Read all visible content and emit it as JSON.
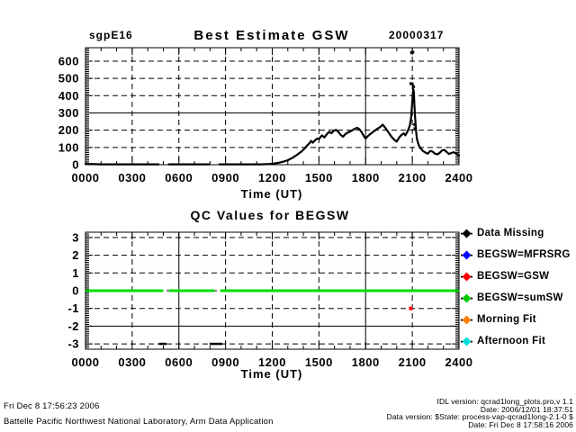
{
  "page": {
    "background": "#ffffff"
  },
  "chart_data": [
    {
      "type": "line",
      "site": "sgpE16",
      "title": "Best Estimate GSW",
      "date": "20000317",
      "xlabel": "Time (UT)",
      "ylabel": "",
      "x_ticks": [
        "0000",
        "0300",
        "0600",
        "0900",
        "1200",
        "1500",
        "1800",
        "2100",
        "2400"
      ],
      "x_tick_hours": [
        0,
        3,
        6,
        9,
        12,
        15,
        18,
        21,
        24
      ],
      "y_ticks": [
        600,
        500,
        400,
        300,
        200,
        100,
        0
      ],
      "grid_h": [
        600,
        500,
        400,
        300,
        200,
        100
      ],
      "y_minor_step": 10,
      "xlim": [
        0,
        24
      ],
      "ylim": [
        0,
        678
      ],
      "grid": {
        "style": "dashed",
        "solid_h": [
          300
        ],
        "solid_v": [
          18
        ]
      },
      "line_color": "#000000",
      "series": [
        [
          0.0,
          7
        ],
        [
          0.1,
          5
        ],
        [
          0.3,
          4
        ],
        [
          0.6,
          3
        ],
        [
          1.0,
          2
        ],
        [
          2.0,
          2
        ],
        [
          3.0,
          2
        ],
        [
          4.0,
          2
        ],
        [
          4.7,
          2
        ],
        null,
        [
          5.35,
          2
        ],
        [
          6.0,
          2
        ],
        [
          7.0,
          2
        ],
        [
          7.95,
          2
        ],
        null,
        [
          8.6,
          2
        ],
        [
          9.5,
          2
        ],
        [
          10.5,
          2
        ],
        [
          11.3,
          2
        ],
        [
          11.8,
          4
        ],
        [
          12.1,
          7
        ],
        [
          12.4,
          11
        ],
        [
          12.7,
          17
        ],
        [
          13.0,
          26
        ],
        [
          13.3,
          40
        ],
        [
          13.6,
          58
        ],
        [
          13.9,
          78
        ],
        [
          14.1,
          96
        ],
        [
          14.25,
          112
        ],
        [
          14.4,
          125
        ],
        [
          14.5,
          138
        ],
        [
          14.6,
          128
        ],
        [
          14.75,
          142
        ],
        [
          14.9,
          152
        ],
        [
          15.0,
          148
        ],
        [
          15.1,
          160
        ],
        [
          15.2,
          170
        ],
        [
          15.35,
          158
        ],
        [
          15.5,
          176
        ],
        [
          15.65,
          190
        ],
        [
          15.8,
          182
        ],
        [
          15.95,
          196
        ],
        [
          16.1,
          202
        ],
        [
          16.25,
          190
        ],
        [
          16.4,
          172
        ],
        [
          16.55,
          162
        ],
        [
          16.7,
          178
        ],
        [
          16.85,
          186
        ],
        [
          17.0,
          192
        ],
        [
          17.15,
          200
        ],
        [
          17.3,
          208
        ],
        [
          17.45,
          214
        ],
        [
          17.6,
          206
        ],
        [
          17.75,
          188
        ],
        [
          17.9,
          164
        ],
        [
          18.0,
          152
        ],
        [
          18.15,
          166
        ],
        [
          18.3,
          178
        ],
        [
          18.45,
          188
        ],
        [
          18.6,
          198
        ],
        [
          18.75,
          208
        ],
        [
          18.9,
          216
        ],
        [
          19.0,
          224
        ],
        [
          19.1,
          232
        ],
        [
          19.25,
          215
        ],
        [
          19.4,
          196
        ],
        [
          19.55,
          176
        ],
        [
          19.7,
          158
        ],
        [
          19.85,
          144
        ],
        [
          20.0,
          134
        ],
        [
          20.15,
          156
        ],
        [
          20.3,
          172
        ],
        [
          20.45,
          182
        ],
        [
          20.55,
          170
        ],
        [
          20.65,
          186
        ],
        [
          20.75,
          204
        ],
        [
          20.85,
          230
        ],
        [
          20.92,
          268
        ],
        [
          20.97,
          330
        ],
        [
          21.02,
          395
        ],
        [
          21.06,
          438
        ],
        [
          21.1,
          418
        ],
        [
          21.13,
          350
        ],
        [
          21.17,
          282
        ],
        [
          21.2,
          248
        ],
        [
          21.25,
          190
        ],
        [
          21.3,
          148
        ],
        [
          21.4,
          118
        ],
        [
          21.5,
          98
        ],
        [
          21.6,
          88
        ],
        [
          21.7,
          78
        ],
        [
          21.85,
          70
        ],
        [
          22.0,
          64
        ],
        [
          22.15,
          80
        ],
        [
          22.3,
          76
        ],
        [
          22.45,
          64
        ],
        [
          22.6,
          60
        ],
        [
          22.75,
          68
        ],
        [
          22.9,
          82
        ],
        [
          23.05,
          86
        ],
        [
          23.2,
          74
        ],
        [
          23.35,
          62
        ],
        [
          23.5,
          68
        ],
        [
          23.65,
          72
        ],
        [
          23.8,
          66
        ],
        [
          24.0,
          52
        ]
      ],
      "isolated_points": [
        [
          20.95,
          650
        ],
        [
          21.04,
          652
        ],
        [
          20.9,
          470
        ],
        [
          21.0,
          468
        ],
        [
          21.08,
          452
        ],
        [
          21.15,
          232
        ],
        [
          21.17,
          210
        ]
      ]
    },
    {
      "type": "line",
      "title": "QC Values for BEGSW",
      "xlabel": "Time (UT)",
      "ylabel": "",
      "x_ticks": [
        "0000",
        "0300",
        "0600",
        "0900",
        "1200",
        "1500",
        "1800",
        "2100",
        "2400"
      ],
      "x_tick_hours": [
        0,
        3,
        6,
        9,
        12,
        15,
        18,
        21,
        24
      ],
      "y_ticks": [
        3,
        2,
        1,
        0,
        -1,
        -2,
        -3
      ],
      "grid_h": [
        3,
        2,
        1,
        0,
        -1,
        -2,
        -3
      ],
      "y_minor_step": 0.1,
      "xlim": [
        0,
        24
      ],
      "ylim": [
        -3.3,
        3.3
      ],
      "grid": {
        "style": "dashed",
        "solid_h": [
          -2
        ],
        "solid_v": [
          6,
          18
        ]
      },
      "qc_segments": [
        {
          "value": 0,
          "color": "#00dd00",
          "width": 3,
          "spans": [
            [
              0,
              5.0
            ],
            [
              5.37,
              8.28
            ],
            [
              8.65,
              24
            ]
          ]
        },
        {
          "value": -3,
          "color": "#000000",
          "width": 2.5,
          "spans": [
            [
              4.72,
              5.2
            ],
            [
              7.97,
              8.8
            ]
          ]
        }
      ],
      "points": [
        {
          "t": 20.9,
          "value": -1,
          "color": "#ff0000"
        }
      ],
      "legend": [
        {
          "label": "Data Missing",
          "color": "#000000"
        },
        {
          "label": "BEGSW=MFRSRG",
          "color": "#0000ff"
        },
        {
          "label": "BEGSW=GSW",
          "color": "#ff0000"
        },
        {
          "label": "BEGSW=sumSW",
          "color": "#00cc00"
        },
        {
          "label": "Morning Fit",
          "color": "#ff8000"
        },
        {
          "label": "Afternoon Fit",
          "color": "#00dddd"
        }
      ]
    }
  ],
  "footer": {
    "generated": "Fri Dec  8 17:56:23 2006",
    "organization": "Battelle Pacific Northwest National Laboratory, Arm Data Application",
    "right_lines": [
      "IDL version: qcrad1long_plots.pro,v 1.1",
      "Date: 2006/12/01 18:37:51",
      "Data version: $State: process-vap-qcrad1long-2.1-0 $",
      "Date: Fri Dec  8 17:58:16 2006"
    ]
  }
}
